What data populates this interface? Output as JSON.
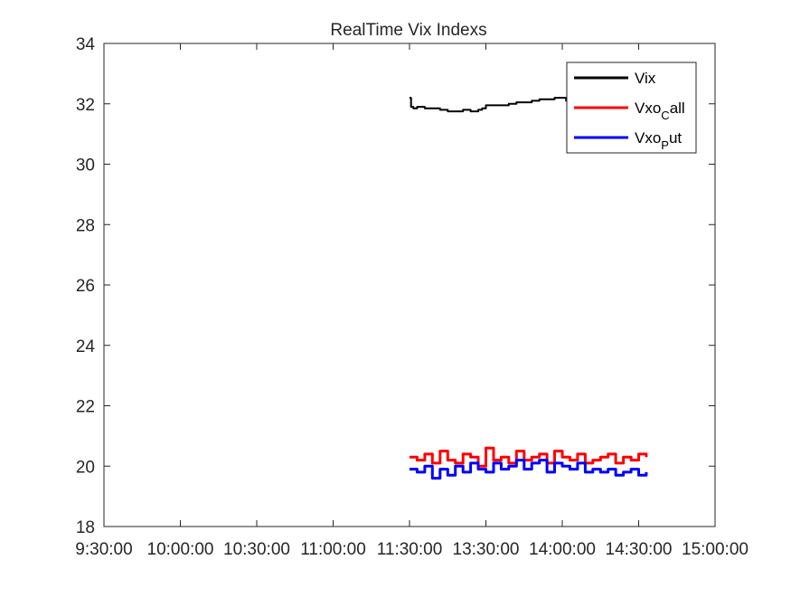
{
  "chart_data": {
    "type": "line",
    "title": "RealTime Vix Indexs",
    "xlabel": "",
    "ylabel": "",
    "categories": [
      "9:30:00",
      "10:00:00",
      "10:30:00",
      "11:00:00",
      "11:30:00",
      "13:30:00",
      "14:00:00",
      "14:30:00",
      "15:00:00"
    ],
    "ylim": [
      18,
      34
    ],
    "yticks": [
      18,
      20,
      22,
      24,
      26,
      28,
      30,
      32,
      34
    ],
    "grid": false,
    "legend_position": "top-right",
    "series": [
      {
        "name": "Vix",
        "legend_text": [
          "Vix"
        ],
        "color": "#000000",
        "x": [
          4.0,
          4.02,
          4.05,
          4.1,
          4.2,
          4.3,
          4.4,
          4.5,
          4.6,
          4.7,
          4.8,
          4.9,
          4.95,
          5.0,
          5.1,
          5.2,
          5.3,
          5.4,
          5.5,
          5.6,
          5.7,
          5.8,
          5.9,
          6.0,
          6.05,
          6.1,
          6.15,
          6.2,
          6.3,
          6.4,
          6.5,
          6.6,
          6.7,
          6.8,
          6.9,
          7.0
        ],
        "values": [
          32.2,
          31.9,
          31.85,
          31.9,
          31.85,
          31.85,
          31.8,
          31.75,
          31.75,
          31.8,
          31.75,
          31.8,
          31.85,
          31.95,
          31.95,
          31.95,
          32.0,
          32.05,
          32.05,
          32.1,
          32.15,
          32.15,
          32.2,
          32.2,
          32.1,
          32.1,
          32.05,
          32.0,
          32.0,
          32.0,
          31.95,
          31.95,
          31.9,
          31.9,
          31.85,
          31.85
        ]
      },
      {
        "name": "Vxo_Call",
        "legend_text": [
          "Vxo",
          "C",
          "all"
        ],
        "color": "#ff0000",
        "x": [
          4.0,
          4.1,
          4.2,
          4.3,
          4.4,
          4.5,
          4.6,
          4.7,
          4.8,
          4.9,
          5.0,
          5.1,
          5.2,
          5.3,
          5.4,
          5.5,
          5.6,
          5.7,
          5.8,
          5.9,
          6.0,
          6.1,
          6.2,
          6.3,
          6.4,
          6.5,
          6.6,
          6.7,
          6.8,
          6.9,
          7.0,
          7.1
        ],
        "values": [
          20.3,
          20.2,
          20.4,
          20.1,
          20.5,
          20.2,
          20.1,
          20.4,
          20.3,
          20.0,
          20.6,
          20.2,
          20.3,
          20.1,
          20.5,
          20.2,
          20.3,
          20.4,
          20.1,
          20.5,
          20.3,
          20.2,
          20.4,
          20.1,
          20.2,
          20.3,
          20.4,
          20.1,
          20.3,
          20.2,
          20.4,
          20.3
        ]
      },
      {
        "name": "Vxo_Put",
        "legend_text": [
          "Vxo",
          "P",
          "ut"
        ],
        "color": "#0000ff",
        "x": [
          4.0,
          4.1,
          4.2,
          4.3,
          4.4,
          4.5,
          4.6,
          4.7,
          4.8,
          4.9,
          5.0,
          5.1,
          5.2,
          5.3,
          5.4,
          5.5,
          5.6,
          5.7,
          5.8,
          5.9,
          6.0,
          6.1,
          6.2,
          6.3,
          6.4,
          6.5,
          6.6,
          6.7,
          6.8,
          6.9,
          7.0,
          7.1
        ],
        "values": [
          19.9,
          19.8,
          20.0,
          19.6,
          19.9,
          19.7,
          20.0,
          19.8,
          20.1,
          19.9,
          19.8,
          20.1,
          19.9,
          20.0,
          20.2,
          19.9,
          20.1,
          20.2,
          19.8,
          20.1,
          20.0,
          19.9,
          20.1,
          19.8,
          19.9,
          19.8,
          19.9,
          19.7,
          19.8,
          19.9,
          19.7,
          19.8
        ]
      }
    ]
  }
}
